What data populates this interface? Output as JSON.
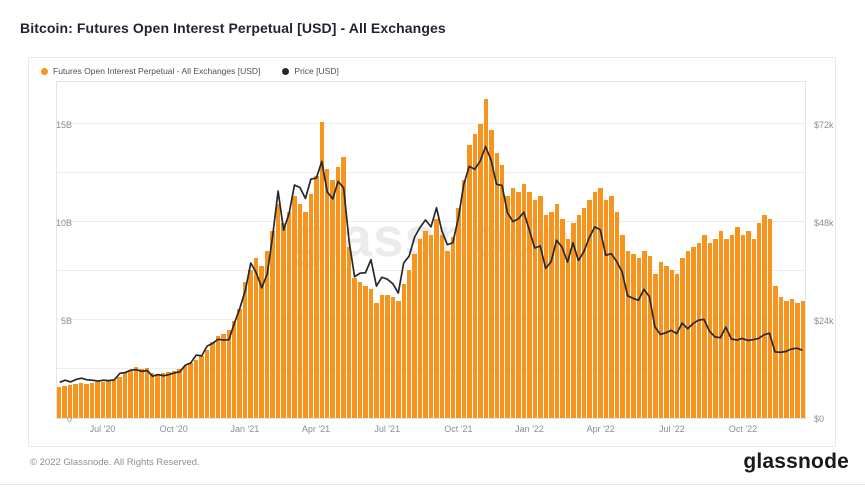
{
  "title": "Bitcoin: Futures Open Interest Perpetual [USD] - All Exchanges",
  "legend": {
    "items": [
      {
        "label": "Futures Open Interest Perpetual - All Exchanges [USD]",
        "color": "#f7941e"
      },
      {
        "label": "Price [USD]",
        "color": "#24292e"
      }
    ]
  },
  "watermark": "glassnode",
  "footer": {
    "copyright": "© 2022 Glassnode. All Rights Reserved.",
    "brand": "glassnode"
  },
  "colors": {
    "bars": "#f7941e",
    "price_line": "#24292e",
    "gridline": "#ededf0",
    "axis_text": "#878e98"
  },
  "chart_data": {
    "type": "bar",
    "note": "weekly values, May 2020 - Dec 2022; bars = open interest (billions USD, left axis), line = BTC price (thousands USD, right axis)",
    "title": "Bitcoin: Futures Open Interest Perpetual [USD] - All Exchanges",
    "x_tick_labels": [
      "Jul '20",
      "Oct '20",
      "Jan '21",
      "Apr '21",
      "Jul '21",
      "Oct '21",
      "Jan '22",
      "Apr '22",
      "Jul '22",
      "Oct '22"
    ],
    "x_tick_indices": [
      8,
      21,
      34,
      47,
      60,
      73,
      86,
      99,
      112,
      125
    ],
    "left_axis": {
      "tick_labels": [
        "0",
        "5B",
        "10B",
        "15B"
      ],
      "tick_values": [
        0,
        5,
        10,
        15
      ],
      "max": 17.25,
      "unit": "billion USD"
    },
    "right_axis": {
      "tick_labels": [
        "$0",
        "$24k",
        "$48k",
        "$72k"
      ],
      "tick_values": [
        0,
        24,
        48,
        72
      ],
      "max": 82.8,
      "unit": "thousand USD"
    },
    "gridline_values": [
      2.5,
      5,
      7.5,
      10,
      12.5,
      15
    ],
    "legend_position": "top-left",
    "series": [
      {
        "name": "Futures Open Interest Perpetual - All Exchanges [USD]",
        "type": "bar",
        "axis": "left",
        "values": [
          1.6,
          1.65,
          1.7,
          1.75,
          1.8,
          1.75,
          1.8,
          1.85,
          1.85,
          1.9,
          1.95,
          2.1,
          2.3,
          2.45,
          2.6,
          2.5,
          2.55,
          2.3,
          2.25,
          2.3,
          2.35,
          2.4,
          2.5,
          2.65,
          2.8,
          3.0,
          3.2,
          3.5,
          3.9,
          4.2,
          4.3,
          4.5,
          5.0,
          5.6,
          7.0,
          7.6,
          8.2,
          7.8,
          8.6,
          9.6,
          11.0,
          10.0,
          10.6,
          11.4,
          11.0,
          10.6,
          11.5,
          12.4,
          15.2,
          12.8,
          12.2,
          12.9,
          13.4,
          8.8,
          7.2,
          7.0,
          6.8,
          6.6,
          5.9,
          6.3,
          6.3,
          6.2,
          6.0,
          6.9,
          7.6,
          8.4,
          9.2,
          9.6,
          9.4,
          10.2,
          9.4,
          8.6,
          9.3,
          10.8,
          12.2,
          14.0,
          14.6,
          15.1,
          16.4,
          14.8,
          13.6,
          13.0,
          11.4,
          11.8,
          11.6,
          12.0,
          11.6,
          11.2,
          11.4,
          10.4,
          10.6,
          11.0,
          10.2,
          9.2,
          10.0,
          10.4,
          10.8,
          11.2,
          11.6,
          11.8,
          11.2,
          11.4,
          10.6,
          9.4,
          8.6,
          8.4,
          8.2,
          8.6,
          8.3,
          7.4,
          8.0,
          7.8,
          7.6,
          7.4,
          8.2,
          8.6,
          8.8,
          9.0,
          9.4,
          9.0,
          9.2,
          9.6,
          9.2,
          9.4,
          9.8,
          9.4,
          9.6,
          9.2,
          10.0,
          10.4,
          10.2,
          6.8,
          6.2,
          6.0,
          6.1,
          5.9,
          6.0
        ]
      },
      {
        "name": "Price [USD]",
        "type": "line",
        "axis": "right",
        "values": [
          8.8,
          9.3,
          8.9,
          9.5,
          9.8,
          9.4,
          9.3,
          9.1,
          9.3,
          9.2,
          9.4,
          11.0,
          11.2,
          11.8,
          11.9,
          11.5,
          11.7,
          10.3,
          10.7,
          10.4,
          10.7,
          11.1,
          11.4,
          13.0,
          13.6,
          15.5,
          15.3,
          17.7,
          18.4,
          19.4,
          19.2,
          19.3,
          23.4,
          27.1,
          31.5,
          38.2,
          35.8,
          32.1,
          35.5,
          44.8,
          55.9,
          46.3,
          50.4,
          57.4,
          56.8,
          54.1,
          58.9,
          59.1,
          63.2,
          55.7,
          54.0,
          58.3,
          56.7,
          43.5,
          34.8,
          35.7,
          35.8,
          39.0,
          32.5,
          34.7,
          34.2,
          33.1,
          30.8,
          38.2,
          39.9,
          44.6,
          47.0,
          48.8,
          47.1,
          51.8,
          46.1,
          42.7,
          43.2,
          49.2,
          57.5,
          62.0,
          61.3,
          63.3,
          66.9,
          63.6,
          57.6,
          57.3,
          50.6,
          48.4,
          49.1,
          50.7,
          46.4,
          41.9,
          42.4,
          36.9,
          38.5,
          43.8,
          42.1,
          38.4,
          43.2,
          38.8,
          41.0,
          44.5,
          47.1,
          46.4,
          40.1,
          40.5,
          38.6,
          36.0,
          30.1,
          29.5,
          29.0,
          31.7,
          29.9,
          22.5,
          20.6,
          21.0,
          21.6,
          20.8,
          23.4,
          22.0,
          23.3,
          24.1,
          24.3,
          21.4,
          20.0,
          19.8,
          22.4,
          19.5,
          19.2,
          19.6,
          19.1,
          19.3,
          19.6,
          20.5,
          20.9,
          16.3,
          16.2,
          16.4,
          17.0,
          17.2,
          16.7
        ]
      }
    ]
  }
}
